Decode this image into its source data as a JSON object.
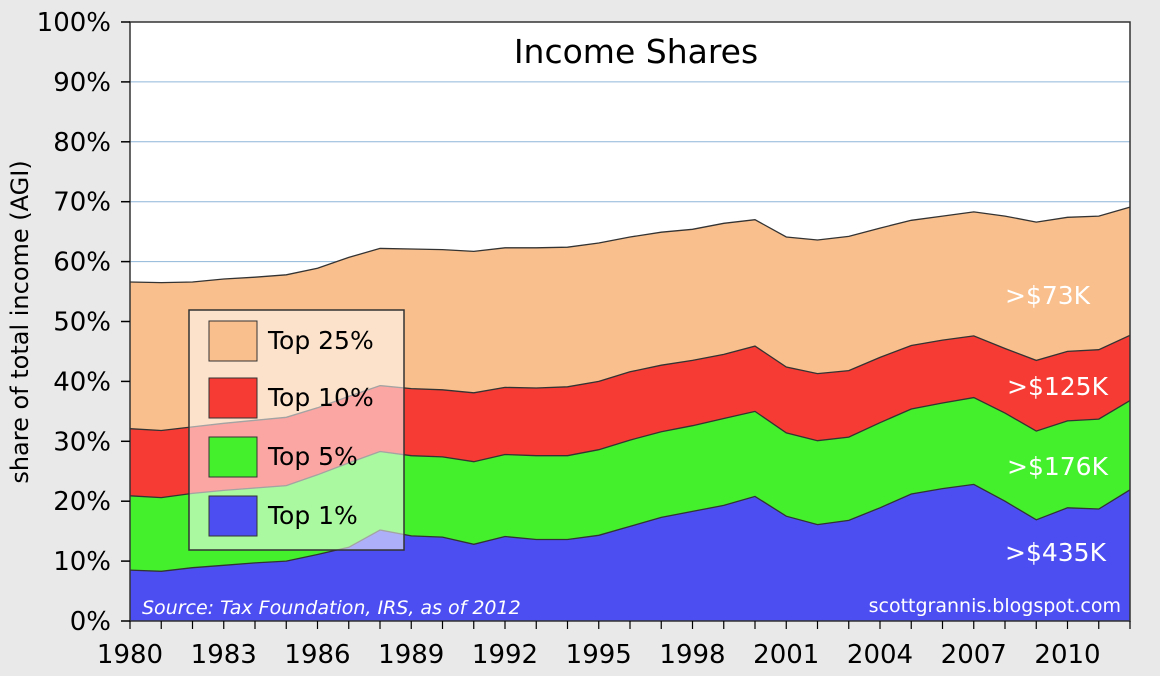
{
  "chart_data": {
    "type": "area",
    "title": "Income Shares",
    "ylabel": "share of total income (AGI)",
    "xlabel": "",
    "ylim": [
      0,
      100
    ],
    "y_ticks": [
      "0%",
      "10%",
      "20%",
      "30%",
      "40%",
      "50%",
      "60%",
      "70%",
      "80%",
      "90%",
      "100%"
    ],
    "x_ticks": [
      "1980",
      "1983",
      "1986",
      "1989",
      "1992",
      "1995",
      "1998",
      "2001",
      "2004",
      "2007",
      "2010"
    ],
    "x": [
      1980,
      1981,
      1982,
      1983,
      1984,
      1985,
      1986,
      1987,
      1988,
      1989,
      1990,
      1991,
      1992,
      1993,
      1994,
      1995,
      1996,
      1997,
      1998,
      1999,
      2000,
      2001,
      2002,
      2003,
      2004,
      2005,
      2006,
      2007,
      2008,
      2009,
      2010,
      2011,
      2012
    ],
    "series": [
      {
        "name": "Top 25%",
        "threshold_label": ">$73K",
        "color": "#f9bf8c",
        "values": [
          56.6,
          56.5,
          56.6,
          57.1,
          57.4,
          57.8,
          58.9,
          60.7,
          62.2,
          62.1,
          62.0,
          61.7,
          62.3,
          62.3,
          62.4,
          63.1,
          64.1,
          64.9,
          65.4,
          66.4,
          67.0,
          64.1,
          63.6,
          64.2,
          65.6,
          66.9,
          67.6,
          68.3,
          67.6,
          66.6,
          67.4,
          67.6,
          69.1
        ]
      },
      {
        "name": "Top 10%",
        "threshold_label": ">$125K",
        "color": "#f53b33",
        "values": [
          32.1,
          31.8,
          32.4,
          33.0,
          33.5,
          34.0,
          35.6,
          37.5,
          39.3,
          38.8,
          38.6,
          38.1,
          39.0,
          38.9,
          39.1,
          40.0,
          41.6,
          42.7,
          43.5,
          44.5,
          45.9,
          42.4,
          41.3,
          41.8,
          44.0,
          46.0,
          46.9,
          47.6,
          45.5,
          43.5,
          45.0,
          45.3,
          47.7
        ]
      },
      {
        "name": "Top 5%",
        "threshold_label": ">$176K",
        "color": "#44f02c",
        "values": [
          20.9,
          20.6,
          21.3,
          21.8,
          22.2,
          22.6,
          24.4,
          26.4,
          28.3,
          27.6,
          27.4,
          26.6,
          27.8,
          27.6,
          27.6,
          28.6,
          30.2,
          31.6,
          32.6,
          33.8,
          35.0,
          31.4,
          30.1,
          30.7,
          33.1,
          35.4,
          36.4,
          37.3,
          34.7,
          31.7,
          33.4,
          33.7,
          36.8
        ]
      },
      {
        "name": "Top 1%",
        "threshold_label": ">$435K",
        "color": "#4d4ef2",
        "values": [
          8.5,
          8.3,
          8.9,
          9.3,
          9.7,
          10.0,
          11.1,
          12.3,
          15.2,
          14.2,
          14.0,
          12.8,
          14.1,
          13.6,
          13.6,
          14.3,
          15.8,
          17.3,
          18.3,
          19.3,
          20.8,
          17.5,
          16.1,
          16.8,
          18.9,
          21.2,
          22.1,
          22.8,
          20.0,
          16.9,
          18.9,
          18.7,
          21.9
        ]
      }
    ],
    "legend": {
      "position": "center-left",
      "entries": [
        "Top 25%",
        "Top 10%",
        "Top 5%",
        "Top 1%"
      ]
    },
    "source_note": "Source: Tax Foundation, IRS, as of 2012",
    "credit": "scottgrannis.blogspot.com",
    "colors": {
      "background": "#e9e9e9",
      "plot_background": "#ffffff",
      "gridline": "#8fb6d9",
      "outline": "#333333"
    }
  }
}
